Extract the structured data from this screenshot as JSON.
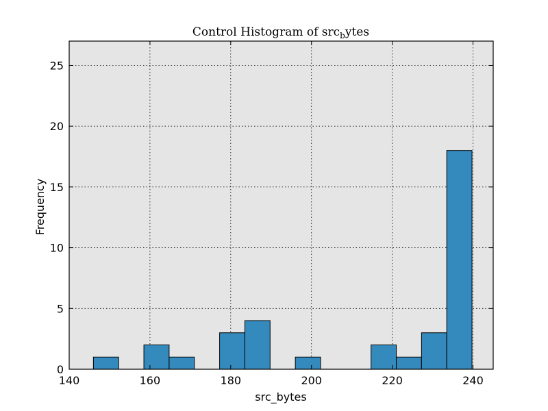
{
  "chart_data": {
    "type": "bar",
    "title_main": "Control Histogram of src",
    "title_sub": "b",
    "title_tail": "ytes",
    "xlabel": "src_bytes",
    "ylabel": "Frequency",
    "xlim": [
      140,
      245
    ],
    "ylim": [
      0,
      27
    ],
    "x_ticks": [
      140,
      160,
      180,
      200,
      220,
      240
    ],
    "y_ticks": [
      0,
      5,
      10,
      15,
      20,
      25
    ],
    "grid": true,
    "bin_width": 6.25,
    "bins": [
      {
        "start": 146.0,
        "count": 1
      },
      {
        "start": 152.25,
        "count": 0
      },
      {
        "start": 158.5,
        "count": 2
      },
      {
        "start": 164.75,
        "count": 1
      },
      {
        "start": 171.0,
        "count": 0
      },
      {
        "start": 177.25,
        "count": 3
      },
      {
        "start": 183.5,
        "count": 4
      },
      {
        "start": 189.75,
        "count": 0
      },
      {
        "start": 196.0,
        "count": 1
      },
      {
        "start": 202.25,
        "count": 0
      },
      {
        "start": 208.5,
        "count": 0
      },
      {
        "start": 214.75,
        "count": 2
      },
      {
        "start": 221.0,
        "count": 1
      },
      {
        "start": 227.25,
        "count": 3
      },
      {
        "start": 233.5,
        "count": 18
      }
    ],
    "colors": {
      "bar": "#348ABD",
      "plot_bg": "#E5E5E5"
    }
  }
}
